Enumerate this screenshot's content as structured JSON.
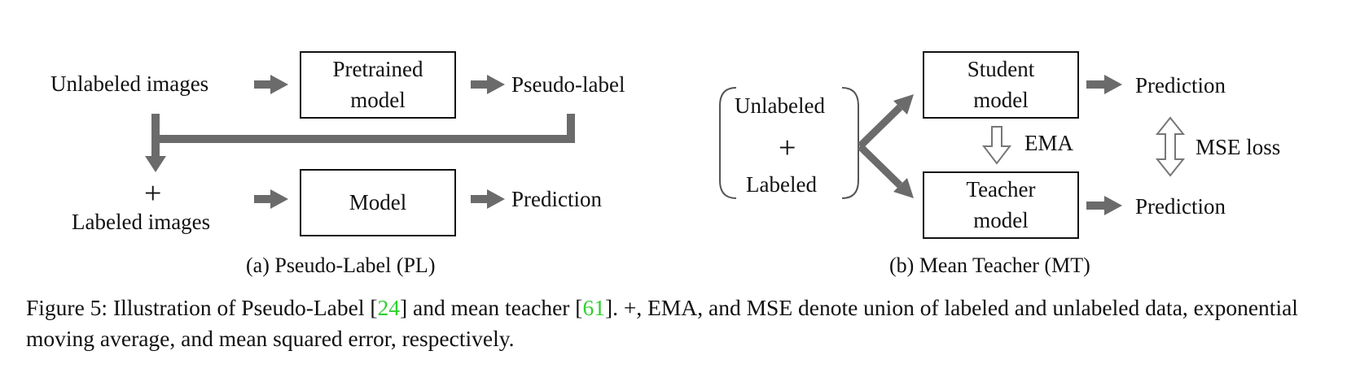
{
  "pl": {
    "input_top": "Unlabeled images",
    "pretrained_line1": "Pretrained",
    "pretrained_line2": "model",
    "pseudo": "Pseudo-label",
    "plus": "+",
    "input_bottom": "Labeled images",
    "model": "Model",
    "prediction": "Prediction",
    "caption": "(a) Pseudo-Label (PL)"
  },
  "mt": {
    "unlabeled": "Unlabeled",
    "plus": "+",
    "labeled": "Labeled",
    "student_line1": "Student",
    "student_line2": "model",
    "teacher_line1": "Teacher",
    "teacher_line2": "model",
    "ema": "EMA",
    "mse": "MSE loss",
    "prediction_top": "Prediction",
    "prediction_bottom": "Prediction",
    "caption": "(b) Mean Teacher (MT)"
  },
  "figure": {
    "prefix": "Figure 5: Illustration of Pseudo-Label [",
    "ref1": "24",
    "mid": "] and mean teacher [",
    "ref2": "61",
    "suffix": "]. +, EMA, and MSE denote union of labeled and unlabeled data, exponential moving average, and mean squared error, respectively."
  },
  "colors": {
    "arrow": "#6b6b6b",
    "reference": "#2fd02f"
  }
}
